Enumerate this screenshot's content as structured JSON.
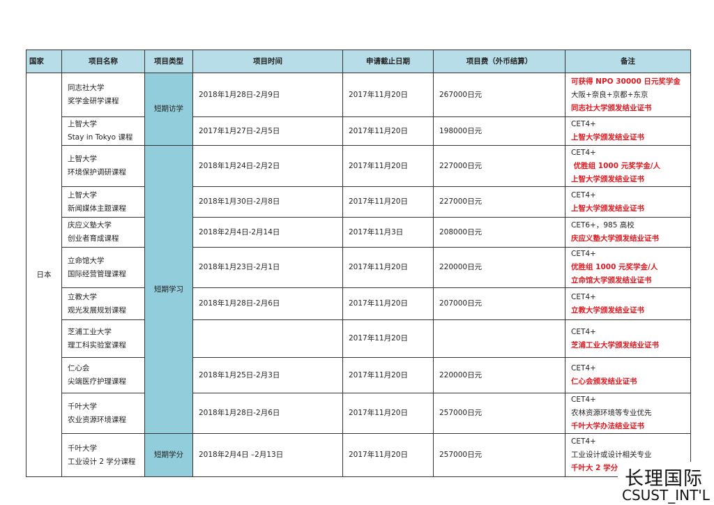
{
  "headers": [
    "国家",
    "项目名称",
    "项目类型",
    "项目时间",
    "申请截止日期",
    "项目费（外币结算）",
    "备注"
  ],
  "country": "日本",
  "types": [
    "短期访学",
    "短期学习",
    "短期学分"
  ],
  "rows": [
    {
      "school": "同志社大学",
      "program": "奖学金研学课程",
      "time": "2018年1月28日-2月9日",
      "deadline": "2017年11月20日",
      "fee": "267000日元",
      "notes": [
        {
          "t": "可获得 NPO 30000 日元奖学金",
          "red": true
        },
        {
          "t": "大阪+奈良+京都+东京",
          "red": false
        },
        {
          "t": "同志社大学颁发结业证书",
          "red": true
        }
      ]
    },
    {
      "school": "上智大学",
      "program": "Stay in Tokyo 课程",
      "time": "2017年1月27日-2月5日",
      "deadline": "2017年11月20日",
      "fee": "198000日元",
      "notes": [
        {
          "t": "CET4+",
          "red": false
        },
        {
          "t": "上智大学颁发结业证书",
          "red": true
        }
      ]
    },
    {
      "school": "上智大学",
      "program": "环境保护调研课程",
      "time": "2018年1月24日-2月2日",
      "deadline": "2017年11月20日",
      "fee": "227000日元",
      "notes": [
        {
          "t": "CET4+",
          "red": false
        },
        {
          "t": " 优胜组 1000 元奖学金/人",
          "red": true
        },
        {
          "t": "上智大学颁发结业证书",
          "red": true
        }
      ]
    },
    {
      "school": "上智大学",
      "program": "新闻媒体主题课程",
      "time": "2018年1月30日-2月8日",
      "deadline": "2017年11月20日",
      "fee": "227000日元",
      "notes": [
        {
          "t": "CET4+",
          "red": false
        },
        {
          "t": "上智大学颁发结业证书",
          "red": true
        }
      ]
    },
    {
      "school": "庆应义塾大学",
      "program": "创业者育成课程",
      "time": "2018年2月4日-2月14日",
      "deadline": "2017年11月3日",
      "fee": "208000日元",
      "notes": [
        {
          "t": "CET6+，985 高校",
          "red": false
        },
        {
          "t": "庆应义塾大学颁发结业证书",
          "red": true
        }
      ]
    },
    {
      "school": "立命馆大学",
      "program": "国际经营管理课程",
      "time": "2018年1月23日-2月1日",
      "deadline": "2017年11月20日",
      "fee": "220000日元",
      "notes": [
        {
          "t": "CET4+",
          "red": false
        },
        {
          "t": "优胜组 1000 元奖学金/人",
          "red": true
        },
        {
          "t": "立命馆大学颁发结业证书",
          "red": true
        }
      ]
    },
    {
      "school": "立教大学",
      "program": "观光发展规划课程",
      "time": "2018年1月28日-2月6日",
      "deadline": "2017年11月20日",
      "fee": "207000日元",
      "notes": [
        {
          "t": "CET4+",
          "red": false
        },
        {
          "t": "立教大学颁发结业证书",
          "red": true
        }
      ]
    },
    {
      "school": "芝浦工业大学",
      "program": "理工科实验室课程",
      "time": "",
      "deadline": "2017年11月20日",
      "fee": "",
      "notes": [
        {
          "t": "CET4+",
          "red": false
        },
        {
          "t": "芝浦工业大学颁发结业证书",
          "red": true
        }
      ]
    },
    {
      "school": "仁心会",
      "program": "尖端医疗护理课程",
      "time": "2018年1月25日-2月3日",
      "deadline": "2017年11月20日",
      "fee": "220000日元",
      "notes": [
        {
          "t": "CET4+",
          "red": false
        },
        {
          "t": "仁心会颁发结业证书",
          "red": true
        }
      ]
    },
    {
      "school": "千叶大学",
      "program": "农业资源环境课程",
      "time": "2018年1月28日-2月6日",
      "deadline": "2017年11月20日",
      "fee": "257000日元",
      "notes": [
        {
          "t": "CET4+",
          "red": false
        },
        {
          "t": "农林资源环境等专业优先",
          "red": false
        },
        {
          "t": "千叶大学办法结业证书",
          "red": true
        }
      ]
    },
    {
      "school": "千叶大学",
      "program": "工业设计 2 学分课程",
      "time": "2018年2月4日 –2月13日",
      "deadline": "2017年11月20日",
      "fee": "257000日元",
      "notes": [
        {
          "t": "CET4+",
          "red": false
        },
        {
          "t": "工业设计或设计相关专业",
          "red": false
        },
        {
          "t": "千叶大 2 学分",
          "red": true
        }
      ]
    }
  ],
  "watermark": {
    "cn": "长理国际",
    "en": "CSUST_INT'L"
  },
  "colors": {
    "header_bg": "#b7dde8",
    "type_bg": "#92cddc",
    "red_text": "#e0191f"
  }
}
